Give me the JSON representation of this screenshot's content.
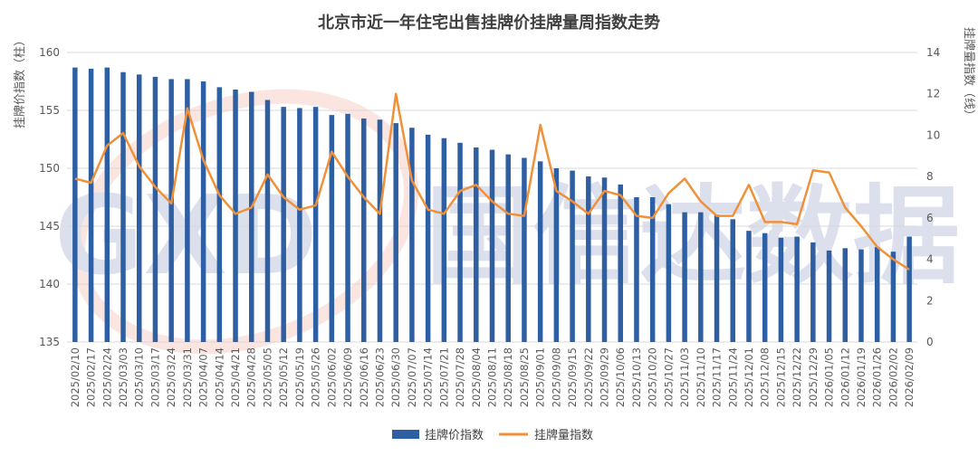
{
  "chart_data": {
    "type": "bar",
    "title": "北京市近一年住宅出售挂牌价挂牌量周指数走势",
    "ylabel_left": "挂牌价指数（柱）",
    "ylabel_right": "挂牌量指数（线）",
    "ylim_left": [
      135,
      160
    ],
    "yticks_left": [
      135,
      140,
      145,
      150,
      155,
      160
    ],
    "ylim_right": [
      0,
      14
    ],
    "yticks_right": [
      0,
      2,
      4,
      6,
      8,
      10,
      12,
      14
    ],
    "grid": true,
    "legend_position": "bottom",
    "watermark": "GXD 国信达数据",
    "categories": [
      "2025/02/10",
      "2025/02/17",
      "2025/02/24",
      "2025/03/03",
      "2025/03/10",
      "2025/03/17",
      "2025/03/24",
      "2025/03/31",
      "2025/04/07",
      "2025/04/14",
      "2025/04/21",
      "2025/04/28",
      "2025/05/05",
      "2025/05/12",
      "2025/05/19",
      "2025/05/26",
      "2025/06/02",
      "2025/06/09",
      "2025/06/16",
      "2025/06/23",
      "2025/06/30",
      "2025/07/07",
      "2025/07/14",
      "2025/07/21",
      "2025/07/28",
      "2025/08/04",
      "2025/08/11",
      "2025/08/18",
      "2025/08/25",
      "2025/09/01",
      "2025/09/08",
      "2025/09/15",
      "2025/09/22",
      "2025/09/29",
      "2025/10/06",
      "2025/10/13",
      "2025/10/20",
      "2025/10/27",
      "2025/11/03",
      "2025/11/10",
      "2025/11/17",
      "2025/11/24",
      "2025/12/01",
      "2025/12/08",
      "2025/12/15",
      "2025/12/22",
      "2025/12/29",
      "2026/01/05",
      "2026/01/12",
      "2026/01/19",
      "2026/01/26",
      "2026/02/02",
      "2026/02/09"
    ],
    "series": [
      {
        "name": "挂牌价指数",
        "type": "bar",
        "axis": "left",
        "color": "#2e5fa3",
        "values": [
          158.7,
          158.6,
          158.7,
          158.3,
          158.1,
          157.9,
          157.7,
          157.7,
          157.5,
          157.0,
          156.8,
          156.6,
          155.9,
          155.3,
          155.2,
          155.3,
          154.6,
          154.7,
          154.3,
          154.2,
          153.9,
          153.5,
          152.9,
          152.6,
          152.2,
          151.8,
          151.6,
          151.2,
          150.9,
          150.6,
          150.0,
          149.8,
          149.3,
          149.2,
          148.6,
          147.5,
          147.5,
          146.9,
          146.2,
          146.2,
          146.0,
          145.6,
          144.6,
          144.4,
          144.0,
          144.1,
          143.6,
          142.9,
          143.1,
          143.0,
          143.2,
          142.8,
          144.1
        ]
      },
      {
        "name": "挂牌量指数",
        "type": "line",
        "axis": "right",
        "color": "#f0913a",
        "values": [
          7.9,
          7.7,
          9.5,
          10.1,
          8.5,
          7.5,
          6.7,
          11.3,
          8.8,
          7.1,
          6.2,
          6.5,
          8.1,
          7.0,
          6.4,
          6.6,
          9.2,
          8.0,
          7.0,
          6.2,
          12.0,
          7.8,
          6.4,
          6.2,
          7.3,
          7.6,
          6.8,
          6.2,
          6.1,
          10.5,
          7.3,
          6.8,
          6.2,
          7.3,
          7.1,
          6.1,
          6.0,
          7.2,
          7.9,
          6.8,
          6.1,
          6.1,
          7.6,
          5.8,
          5.8,
          5.7,
          8.3,
          8.2,
          6.5,
          5.6,
          4.6,
          4.0,
          3.5
        ]
      }
    ]
  }
}
